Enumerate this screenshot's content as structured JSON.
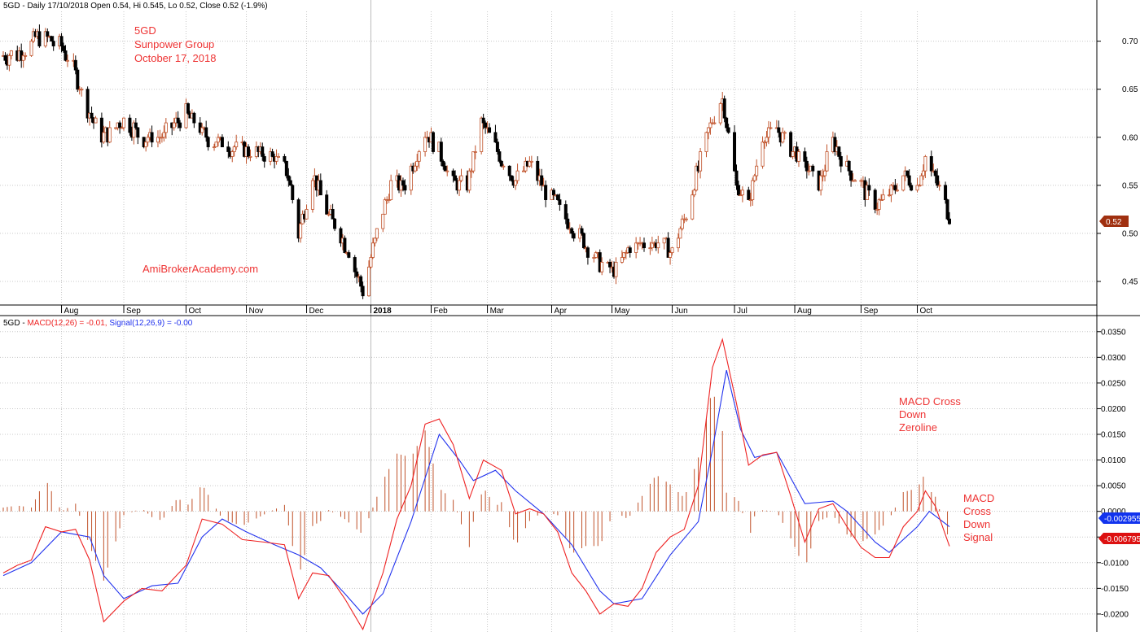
{
  "price_header": {
    "symbol": "5GD",
    "text": " - Daily 17/10/2018 Open 0.54, Hi 0.545, Lo 0.52, Close 0.52 (-1.9%)"
  },
  "macd_header": {
    "symbol": "5GD",
    "macd_text": "MACD(12,26) = -0.01,",
    "signal_text": "Signal(12,26,9) = -0.00"
  },
  "annotations": {
    "title_lines": [
      "5GD",
      "Sunpower Group",
      "October 17, 2018"
    ],
    "watermark": "AmiBrokerAcademy.com",
    "macd_zero_lines": [
      "MACD Cross",
      "Down",
      "Zeroline"
    ],
    "macd_signal_lines": [
      "MACD",
      "Cross",
      "Down",
      "Signal"
    ]
  },
  "badges": {
    "last_price": "0.52",
    "signal_value": "-0.002955",
    "macd_value": "-0.006795"
  },
  "colors": {
    "up_candle": "#c0522a",
    "down_candle": "#000000",
    "macd_line": "#ee2222",
    "signal_line": "#2233ee",
    "histogram": "#c0522a",
    "annotation": "#ee3333",
    "price_badge": "#a03010",
    "macd_badge": "#dd1111",
    "signal_badge": "#1133ee"
  },
  "chart_data": [
    {
      "type": "candlestick",
      "title": "5GD - Daily",
      "x_tick_labels": [
        "Aug",
        "Sep",
        "Oct",
        "Nov",
        "Dec",
        "2018",
        "Feb",
        "Mar",
        "Apr",
        "May",
        "Jun",
        "Jul",
        "Aug",
        "Sep",
        "Oct"
      ],
      "y_ticks": [
        "0.45",
        "0.50",
        "0.55",
        "0.60",
        "0.65",
        "0.70"
      ],
      "ylim": [
        0.428,
        0.731
      ],
      "grid": true,
      "last_close": 0.52,
      "price_keypoints": [
        {
          "date": "2017-07-10",
          "close": 0.685
        },
        {
          "date": "2017-07-20",
          "close": 0.705
        },
        {
          "date": "2017-08-01",
          "close": 0.695
        },
        {
          "date": "2017-08-08",
          "close": 0.665
        },
        {
          "date": "2017-08-15",
          "close": 0.625
        },
        {
          "date": "2017-08-22",
          "close": 0.6
        },
        {
          "date": "2017-09-01",
          "close": 0.62
        },
        {
          "date": "2017-09-10",
          "close": 0.6
        },
        {
          "date": "2017-09-20",
          "close": 0.6
        },
        {
          "date": "2017-10-02",
          "close": 0.625
        },
        {
          "date": "2017-10-12",
          "close": 0.6
        },
        {
          "date": "2017-10-25",
          "close": 0.59
        },
        {
          "date": "2017-11-05",
          "close": 0.585
        },
        {
          "date": "2017-11-15",
          "close": 0.58
        },
        {
          "date": "2017-11-22",
          "close": 0.56
        },
        {
          "date": "2017-11-27",
          "close": 0.5
        },
        {
          "date": "2017-12-04",
          "close": 0.56
        },
        {
          "date": "2017-12-12",
          "close": 0.52
        },
        {
          "date": "2017-12-22",
          "close": 0.48
        },
        {
          "date": "2017-12-29",
          "close": 0.44
        },
        {
          "date": "2018-01-05",
          "close": 0.5
        },
        {
          "date": "2018-01-12",
          "close": 0.55
        },
        {
          "date": "2018-01-19",
          "close": 0.55
        },
        {
          "date": "2018-01-29",
          "close": 0.605
        },
        {
          "date": "2018-02-05",
          "close": 0.585
        },
        {
          "date": "2018-02-12",
          "close": 0.55
        },
        {
          "date": "2018-02-19",
          "close": 0.55
        },
        {
          "date": "2018-02-26",
          "close": 0.615
        },
        {
          "date": "2018-03-07",
          "close": 0.58
        },
        {
          "date": "2018-03-15",
          "close": 0.555
        },
        {
          "date": "2018-03-22",
          "close": 0.575
        },
        {
          "date": "2018-03-28",
          "close": 0.55
        },
        {
          "date": "2018-04-04",
          "close": 0.53
        },
        {
          "date": "2018-04-11",
          "close": 0.51
        },
        {
          "date": "2018-04-18",
          "close": 0.49
        },
        {
          "date": "2018-04-25",
          "close": 0.47
        },
        {
          "date": "2018-05-03",
          "close": 0.46
        },
        {
          "date": "2018-05-11",
          "close": 0.485
        },
        {
          "date": "2018-05-18",
          "close": 0.49
        },
        {
          "date": "2018-05-25",
          "close": 0.49
        },
        {
          "date": "2018-06-01",
          "close": 0.48
        },
        {
          "date": "2018-06-08",
          "close": 0.52
        },
        {
          "date": "2018-06-15",
          "close": 0.575
        },
        {
          "date": "2018-06-21",
          "close": 0.62
        },
        {
          "date": "2018-06-26",
          "close": 0.64
        },
        {
          "date": "2018-07-03",
          "close": 0.55
        },
        {
          "date": "2018-07-09",
          "close": 0.53
        },
        {
          "date": "2018-07-16",
          "close": 0.6
        },
        {
          "date": "2018-07-23",
          "close": 0.61
        },
        {
          "date": "2018-07-30",
          "close": 0.59
        },
        {
          "date": "2018-08-06",
          "close": 0.57
        },
        {
          "date": "2018-08-13",
          "close": 0.55
        },
        {
          "date": "2018-08-20",
          "close": 0.595
        },
        {
          "date": "2018-08-27",
          "close": 0.57
        },
        {
          "date": "2018-09-03",
          "close": 0.55
        },
        {
          "date": "2018-09-10",
          "close": 0.53
        },
        {
          "date": "2018-09-17",
          "close": 0.54
        },
        {
          "date": "2018-09-24",
          "close": 0.56
        },
        {
          "date": "2018-10-01",
          "close": 0.55
        },
        {
          "date": "2018-10-05",
          "close": 0.58
        },
        {
          "date": "2018-10-10",
          "close": 0.555
        },
        {
          "date": "2018-10-17",
          "close": 0.52
        }
      ]
    },
    {
      "type": "line",
      "title": "5GD - MACD(12,26), Signal(12,26,9)",
      "x_tick_labels": [
        "Aug",
        "Sep",
        "Oct",
        "Nov",
        "Dec",
        "2018",
        "Feb",
        "Mar",
        "Apr",
        "May",
        "Jun",
        "Jul",
        "Aug",
        "Sep",
        "Oct"
      ],
      "y_ticks": [
        "0.0350",
        "0.0300",
        "0.0250",
        "0.0200",
        "0.0150",
        "0.0100",
        "0.0050",
        "0.0000",
        "-0.0050",
        "-0.0100",
        "-0.0150",
        "-0.0200"
      ],
      "ylim": [
        -0.0235,
        0.0375
      ],
      "grid": true,
      "series": [
        {
          "name": "MACD(12,26)",
          "points": [
            [
              "2017-07-03",
              -0.012
            ],
            [
              "2017-07-10",
              -0.0105
            ],
            [
              "2017-07-17",
              -0.0095
            ],
            [
              "2017-07-24",
              -0.003
            ],
            [
              "2017-08-01",
              -0.004
            ],
            [
              "2017-08-08",
              -0.0035
            ],
            [
              "2017-08-15",
              -0.0095
            ],
            [
              "2017-08-22",
              -0.0215
            ],
            [
              "2017-09-01",
              -0.0175
            ],
            [
              "2017-09-10",
              -0.015
            ],
            [
              "2017-09-20",
              -0.0155
            ],
            [
              "2017-10-02",
              -0.0105
            ],
            [
              "2017-10-10",
              -0.0015
            ],
            [
              "2017-10-20",
              -0.0025
            ],
            [
              "2017-10-30",
              -0.0055
            ],
            [
              "2017-11-10",
              -0.006
            ],
            [
              "2017-11-20",
              -0.0065
            ],
            [
              "2017-11-27",
              -0.017
            ],
            [
              "2017-12-04",
              -0.012
            ],
            [
              "2017-12-12",
              -0.0125
            ],
            [
              "2017-12-20",
              -0.017
            ],
            [
              "2017-12-29",
              -0.023
            ],
            [
              "2018-01-08",
              -0.012
            ],
            [
              "2018-01-15",
              -0.0015
            ],
            [
              "2018-01-22",
              0.005
            ],
            [
              "2018-01-29",
              0.017
            ],
            [
              "2018-02-05",
              0.018
            ],
            [
              "2018-02-12",
              0.013
            ],
            [
              "2018-02-20",
              0.0025
            ],
            [
              "2018-02-27",
              0.01
            ],
            [
              "2018-03-08",
              0.008
            ],
            [
              "2018-03-15",
              -0.0005
            ],
            [
              "2018-03-22",
              0.0005
            ],
            [
              "2018-03-29",
              -0.0005
            ],
            [
              "2018-04-05",
              -0.004
            ],
            [
              "2018-04-12",
              -0.012
            ],
            [
              "2018-04-19",
              -0.0155
            ],
            [
              "2018-04-26",
              -0.02
            ],
            [
              "2018-05-03",
              -0.018
            ],
            [
              "2018-05-10",
              -0.0185
            ],
            [
              "2018-05-17",
              -0.015
            ],
            [
              "2018-05-24",
              -0.008
            ],
            [
              "2018-05-31",
              -0.005
            ],
            [
              "2018-06-07",
              -0.0035
            ],
            [
              "2018-06-14",
              0.005
            ],
            [
              "2018-06-21",
              0.028
            ],
            [
              "2018-06-26",
              0.0335
            ],
            [
              "2018-07-03",
              0.021
            ],
            [
              "2018-07-09",
              0.009
            ],
            [
              "2018-07-16",
              0.011
            ],
            [
              "2018-07-23",
              0.0115
            ],
            [
              "2018-07-30",
              0.003
            ],
            [
              "2018-08-06",
              -0.006
            ],
            [
              "2018-08-13",
              0.0005
            ],
            [
              "2018-08-20",
              0.0015
            ],
            [
              "2018-08-27",
              -0.003
            ],
            [
              "2018-09-03",
              -0.007
            ],
            [
              "2018-09-10",
              -0.009
            ],
            [
              "2018-09-17",
              -0.009
            ],
            [
              "2018-09-24",
              -0.003
            ],
            [
              "2018-10-01",
              0.0
            ],
            [
              "2018-10-05",
              0.004
            ],
            [
              "2018-10-10",
              0.001
            ],
            [
              "2018-10-17",
              -0.0068
            ]
          ]
        },
        {
          "name": "Signal(12,26,9)",
          "points": [
            [
              "2017-07-03",
              -0.0125
            ],
            [
              "2017-07-17",
              -0.01
            ],
            [
              "2017-08-01",
              -0.004
            ],
            [
              "2017-08-15",
              -0.005
            ],
            [
              "2017-08-22",
              -0.0125
            ],
            [
              "2017-09-01",
              -0.017
            ],
            [
              "2017-09-15",
              -0.0145
            ],
            [
              "2017-09-28",
              -0.014
            ],
            [
              "2017-10-10",
              -0.005
            ],
            [
              "2017-10-20",
              -0.0015
            ],
            [
              "2017-11-01",
              -0.004
            ],
            [
              "2017-11-15",
              -0.0065
            ],
            [
              "2017-11-27",
              -0.0085
            ],
            [
              "2017-12-08",
              -0.011
            ],
            [
              "2017-12-20",
              -0.016
            ],
            [
              "2017-12-29",
              -0.02
            ],
            [
              "2018-01-08",
              -0.016
            ],
            [
              "2018-01-22",
              -0.002
            ],
            [
              "2018-02-05",
              0.015
            ],
            [
              "2018-02-15",
              0.01
            ],
            [
              "2018-02-22",
              0.006
            ],
            [
              "2018-03-05",
              0.008
            ],
            [
              "2018-03-15",
              0.004
            ],
            [
              "2018-03-29",
              -0.0005
            ],
            [
              "2018-04-12",
              -0.0065
            ],
            [
              "2018-04-26",
              -0.0155
            ],
            [
              "2018-05-03",
              -0.018
            ],
            [
              "2018-05-17",
              -0.017
            ],
            [
              "2018-05-31",
              -0.0085
            ],
            [
              "2018-06-14",
              -0.002
            ],
            [
              "2018-06-21",
              0.012
            ],
            [
              "2018-06-28",
              0.0275
            ],
            [
              "2018-07-05",
              0.016
            ],
            [
              "2018-07-12",
              0.0105
            ],
            [
              "2018-07-23",
              0.0115
            ],
            [
              "2018-08-06",
              0.0015
            ],
            [
              "2018-08-20",
              0.002
            ],
            [
              "2018-08-27",
              0.0
            ],
            [
              "2018-09-10",
              -0.006
            ],
            [
              "2018-09-17",
              -0.008
            ],
            [
              "2018-10-01",
              -0.003
            ],
            [
              "2018-10-07",
              0.0
            ],
            [
              "2018-10-17",
              -0.003
            ]
          ]
        }
      ],
      "histogram": "MACD minus Signal, drawn as vertical bars around zero"
    }
  ]
}
